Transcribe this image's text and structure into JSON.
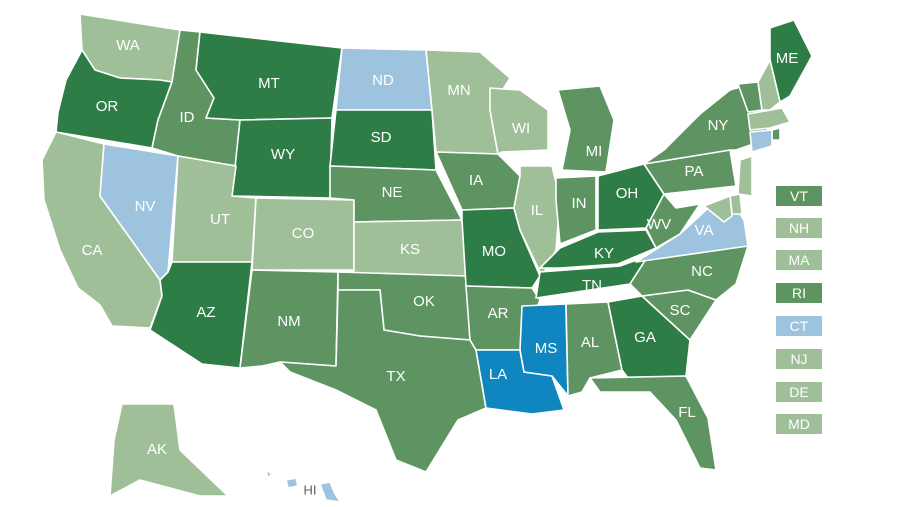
{
  "colors": {
    "dark_green": "#2e7d46",
    "medium_green": "#5e9461",
    "light_green": "#9fbf98",
    "light_blue": "#9ec3df",
    "bright_blue": "#0f86c0"
  },
  "states": [
    {
      "abbr": "WA",
      "color": "light_green"
    },
    {
      "abbr": "OR",
      "color": "dark_green"
    },
    {
      "abbr": "CA",
      "color": "light_green"
    },
    {
      "abbr": "NV",
      "color": "light_blue"
    },
    {
      "abbr": "ID",
      "color": "medium_green"
    },
    {
      "abbr": "MT",
      "color": "dark_green"
    },
    {
      "abbr": "WY",
      "color": "dark_green"
    },
    {
      "abbr": "UT",
      "color": "light_green"
    },
    {
      "abbr": "AZ",
      "color": "dark_green"
    },
    {
      "abbr": "CO",
      "color": "light_green"
    },
    {
      "abbr": "NM",
      "color": "medium_green"
    },
    {
      "abbr": "ND",
      "color": "light_blue"
    },
    {
      "abbr": "SD",
      "color": "dark_green"
    },
    {
      "abbr": "NE",
      "color": "medium_green"
    },
    {
      "abbr": "KS",
      "color": "light_green"
    },
    {
      "abbr": "OK",
      "color": "medium_green"
    },
    {
      "abbr": "TX",
      "color": "medium_green"
    },
    {
      "abbr": "MN",
      "color": "light_green"
    },
    {
      "abbr": "IA",
      "color": "medium_green"
    },
    {
      "abbr": "MO",
      "color": "dark_green"
    },
    {
      "abbr": "AR",
      "color": "medium_green"
    },
    {
      "abbr": "LA",
      "color": "bright_blue"
    },
    {
      "abbr": "WI",
      "color": "light_green"
    },
    {
      "abbr": "IL",
      "color": "light_green"
    },
    {
      "abbr": "MI",
      "color": "medium_green"
    },
    {
      "abbr": "IN",
      "color": "medium_green"
    },
    {
      "abbr": "OH",
      "color": "dark_green"
    },
    {
      "abbr": "KY",
      "color": "dark_green"
    },
    {
      "abbr": "TN",
      "color": "dark_green"
    },
    {
      "abbr": "MS",
      "color": "bright_blue"
    },
    {
      "abbr": "AL",
      "color": "medium_green"
    },
    {
      "abbr": "GA",
      "color": "dark_green"
    },
    {
      "abbr": "FL",
      "color": "medium_green"
    },
    {
      "abbr": "SC",
      "color": "medium_green"
    },
    {
      "abbr": "NC",
      "color": "medium_green"
    },
    {
      "abbr": "VA",
      "color": "light_blue"
    },
    {
      "abbr": "WV",
      "color": "medium_green"
    },
    {
      "abbr": "PA",
      "color": "medium_green"
    },
    {
      "abbr": "NY",
      "color": "medium_green"
    },
    {
      "abbr": "ME",
      "color": "dark_green"
    },
    {
      "abbr": "AK",
      "color": "light_green"
    },
    {
      "abbr": "HI",
      "color": "light_blue"
    }
  ],
  "small_states": [
    {
      "abbr": "VT",
      "color": "medium_green"
    },
    {
      "abbr": "NH",
      "color": "light_green"
    },
    {
      "abbr": "MA",
      "color": "light_green"
    },
    {
      "abbr": "RI",
      "color": "medium_green"
    },
    {
      "abbr": "CT",
      "color": "light_blue"
    },
    {
      "abbr": "NJ",
      "color": "light_green"
    },
    {
      "abbr": "DE",
      "color": "light_green"
    },
    {
      "abbr": "MD",
      "color": "light_green"
    }
  ]
}
